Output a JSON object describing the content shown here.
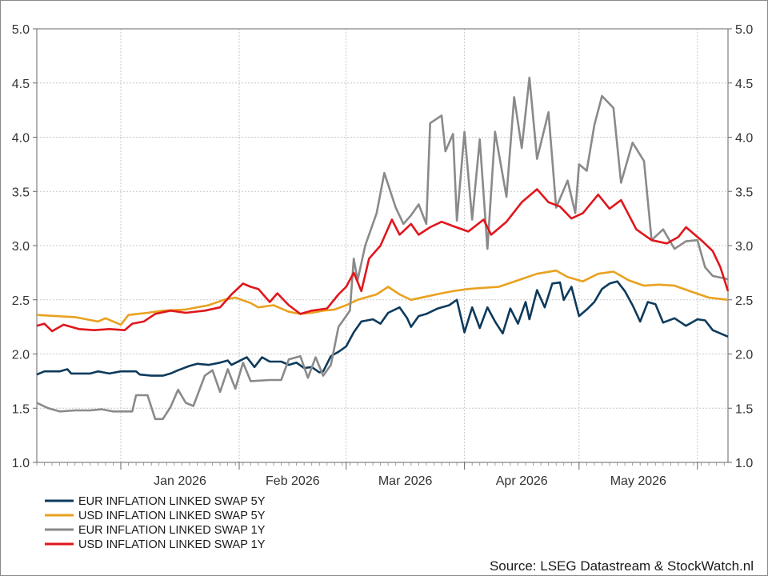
{
  "chart_data": {
    "type": "line",
    "title": "",
    "xlabel": "",
    "ylabel": "",
    "x_range": [
      "2025-12-10",
      "2026-06-09"
    ],
    "ylim": [
      1.0,
      5.0
    ],
    "y_ticks": [
      "1.0",
      "1.5",
      "2.0",
      "2.5",
      "3.0",
      "3.5",
      "4.0",
      "4.5",
      "5.0"
    ],
    "x_ticks": [
      {
        "label": "Jan 2026",
        "date": "2026-01-01"
      },
      {
        "label": "Feb 2026",
        "date": "2026-02-01"
      },
      {
        "label": "Mar 2026",
        "date": "2026-03-01"
      },
      {
        "label": "Apr 2026",
        "date": "2026-04-01"
      },
      {
        "label": "May 2026",
        "date": "2026-05-01"
      }
    ],
    "grid": true,
    "legend_position": "bottom-left",
    "source": "Source: LSEG Datastream & StockWatch.nl",
    "series": [
      {
        "name": "EUR INFLATION LINKED SWAP 5Y",
        "color": "#0d3a5c",
        "points": [
          [
            "2025-12-10",
            1.81
          ],
          [
            "2025-12-12",
            1.84
          ],
          [
            "2025-12-16",
            1.84
          ],
          [
            "2025-12-18",
            1.86
          ],
          [
            "2025-12-19",
            1.82
          ],
          [
            "2025-12-24",
            1.82
          ],
          [
            "2025-12-26",
            1.84
          ],
          [
            "2025-12-29",
            1.82
          ],
          [
            "2026-01-01",
            1.84
          ],
          [
            "2026-01-05",
            1.84
          ],
          [
            "2026-01-06",
            1.81
          ],
          [
            "2026-01-09",
            1.8
          ],
          [
            "2026-01-12",
            1.8
          ],
          [
            "2026-01-14",
            1.82
          ],
          [
            "2026-01-16",
            1.85
          ],
          [
            "2026-01-19",
            1.89
          ],
          [
            "2026-01-21",
            1.91
          ],
          [
            "2026-01-24",
            1.9
          ],
          [
            "2026-01-27",
            1.92
          ],
          [
            "2026-01-29",
            1.94
          ],
          [
            "2026-01-30",
            1.9
          ],
          [
            "2026-02-03",
            1.97
          ],
          [
            "2026-02-05",
            1.88
          ],
          [
            "2026-02-07",
            1.97
          ],
          [
            "2026-02-09",
            1.93
          ],
          [
            "2026-02-12",
            1.93
          ],
          [
            "2026-02-14",
            1.9
          ],
          [
            "2026-02-16",
            1.92
          ],
          [
            "2026-02-18",
            1.87
          ],
          [
            "2026-02-20",
            1.88
          ],
          [
            "2026-02-22",
            1.83
          ],
          [
            "2026-02-23",
            1.84
          ],
          [
            "2026-02-25",
            1.98
          ],
          [
            "2026-02-27",
            2.02
          ],
          [
            "2026-03-01",
            2.07
          ],
          [
            "2026-03-03",
            2.2
          ],
          [
            "2026-03-05",
            2.3
          ],
          [
            "2026-03-08",
            2.32
          ],
          [
            "2026-03-10",
            2.28
          ],
          [
            "2026-03-12",
            2.38
          ],
          [
            "2026-03-15",
            2.43
          ],
          [
            "2026-03-17",
            2.33
          ],
          [
            "2026-03-18",
            2.25
          ],
          [
            "2026-03-20",
            2.35
          ],
          [
            "2026-03-22",
            2.37
          ],
          [
            "2026-03-25",
            2.42
          ],
          [
            "2026-03-28",
            2.45
          ],
          [
            "2026-03-30",
            2.5
          ],
          [
            "2026-04-01",
            2.2
          ],
          [
            "2026-04-03",
            2.43
          ],
          [
            "2026-04-05",
            2.24
          ],
          [
            "2026-04-07",
            2.43
          ],
          [
            "2026-04-09",
            2.3
          ],
          [
            "2026-04-11",
            2.19
          ],
          [
            "2026-04-13",
            2.42
          ],
          [
            "2026-04-15",
            2.28
          ],
          [
            "2026-04-17",
            2.48
          ],
          [
            "2026-04-18",
            2.32
          ],
          [
            "2026-04-20",
            2.59
          ],
          [
            "2026-04-22",
            2.43
          ],
          [
            "2026-04-24",
            2.65
          ],
          [
            "2026-04-26",
            2.66
          ],
          [
            "2026-04-27",
            2.5
          ],
          [
            "2026-04-29",
            2.62
          ],
          [
            "2026-05-01",
            2.35
          ],
          [
            "2026-05-03",
            2.41
          ],
          [
            "2026-05-05",
            2.48
          ],
          [
            "2026-05-07",
            2.6
          ],
          [
            "2026-05-09",
            2.65
          ],
          [
            "2026-05-11",
            2.67
          ],
          [
            "2026-05-13",
            2.58
          ],
          [
            "2026-05-15",
            2.45
          ],
          [
            "2026-05-17",
            2.3
          ],
          [
            "2026-05-19",
            2.48
          ],
          [
            "2026-05-21",
            2.46
          ],
          [
            "2026-05-23",
            2.29
          ],
          [
            "2026-05-26",
            2.33
          ],
          [
            "2026-05-29",
            2.26
          ],
          [
            "2026-06-01",
            2.32
          ],
          [
            "2026-06-03",
            2.31
          ],
          [
            "2026-06-05",
            2.22
          ],
          [
            "2026-06-09",
            2.16
          ]
        ]
      },
      {
        "name": "USD INFLATION LINKED SWAP 5Y",
        "color": "#e9a11f",
        "points": [
          [
            "2025-12-10",
            2.36
          ],
          [
            "2025-12-15",
            2.35
          ],
          [
            "2025-12-20",
            2.34
          ],
          [
            "2025-12-26",
            2.3
          ],
          [
            "2025-12-28",
            2.33
          ],
          [
            "2026-01-01",
            2.27
          ],
          [
            "2026-01-03",
            2.36
          ],
          [
            "2026-01-08",
            2.38
          ],
          [
            "2026-01-12",
            2.4
          ],
          [
            "2026-01-18",
            2.41
          ],
          [
            "2026-01-24",
            2.45
          ],
          [
            "2026-01-28",
            2.5
          ],
          [
            "2026-01-31",
            2.52
          ],
          [
            "2026-02-04",
            2.47
          ],
          [
            "2026-02-06",
            2.43
          ],
          [
            "2026-02-10",
            2.45
          ],
          [
            "2026-02-14",
            2.39
          ],
          [
            "2026-02-17",
            2.37
          ],
          [
            "2026-02-20",
            2.38
          ],
          [
            "2026-02-23",
            2.4
          ],
          [
            "2026-02-26",
            2.41
          ],
          [
            "2026-03-01",
            2.45
          ],
          [
            "2026-03-04",
            2.5
          ],
          [
            "2026-03-09",
            2.55
          ],
          [
            "2026-03-12",
            2.62
          ],
          [
            "2026-03-15",
            2.55
          ],
          [
            "2026-03-18",
            2.5
          ],
          [
            "2026-03-22",
            2.53
          ],
          [
            "2026-03-26",
            2.56
          ],
          [
            "2026-03-29",
            2.58
          ],
          [
            "2026-04-02",
            2.6
          ],
          [
            "2026-04-06",
            2.61
          ],
          [
            "2026-04-10",
            2.62
          ],
          [
            "2026-04-15",
            2.68
          ],
          [
            "2026-04-20",
            2.74
          ],
          [
            "2026-04-25",
            2.77
          ],
          [
            "2026-04-28",
            2.71
          ],
          [
            "2026-05-02",
            2.67
          ],
          [
            "2026-05-06",
            2.74
          ],
          [
            "2026-05-10",
            2.76
          ],
          [
            "2026-05-14",
            2.68
          ],
          [
            "2026-05-18",
            2.63
          ],
          [
            "2026-05-22",
            2.64
          ],
          [
            "2026-05-26",
            2.63
          ],
          [
            "2026-05-30",
            2.58
          ],
          [
            "2026-06-04",
            2.52
          ],
          [
            "2026-06-09",
            2.5
          ]
        ]
      },
      {
        "name": "EUR INFLATION LINKED SWAP 1Y",
        "color": "#8a8a8a",
        "points": [
          [
            "2025-12-10",
            1.55
          ],
          [
            "2025-12-13",
            1.5
          ],
          [
            "2025-12-16",
            1.47
          ],
          [
            "2025-12-20",
            1.48
          ],
          [
            "2025-12-24",
            1.48
          ],
          [
            "2025-12-27",
            1.49
          ],
          [
            "2025-12-30",
            1.47
          ],
          [
            "2026-01-04",
            1.47
          ],
          [
            "2026-01-05",
            1.62
          ],
          [
            "2026-01-08",
            1.62
          ],
          [
            "2026-01-10",
            1.4
          ],
          [
            "2026-01-12",
            1.4
          ],
          [
            "2026-01-14",
            1.51
          ],
          [
            "2026-01-16",
            1.67
          ],
          [
            "2026-01-18",
            1.55
          ],
          [
            "2026-01-20",
            1.52
          ],
          [
            "2026-01-23",
            1.8
          ],
          [
            "2026-01-25",
            1.85
          ],
          [
            "2026-01-27",
            1.65
          ],
          [
            "2026-01-29",
            1.86
          ],
          [
            "2026-01-31",
            1.68
          ],
          [
            "2026-02-02",
            1.92
          ],
          [
            "2026-02-04",
            1.75
          ],
          [
            "2026-02-09",
            1.76
          ],
          [
            "2026-02-12",
            1.76
          ],
          [
            "2026-02-14",
            1.95
          ],
          [
            "2026-02-17",
            1.98
          ],
          [
            "2026-02-19",
            1.78
          ],
          [
            "2026-02-21",
            1.97
          ],
          [
            "2026-02-23",
            1.8
          ],
          [
            "2026-02-25",
            1.9
          ],
          [
            "2026-02-27",
            2.25
          ],
          [
            "2026-02-28",
            2.3
          ],
          [
            "2026-03-02",
            2.4
          ],
          [
            "2026-03-03",
            2.88
          ],
          [
            "2026-03-04",
            2.68
          ],
          [
            "2026-03-06",
            3.0
          ],
          [
            "2026-03-09",
            3.3
          ],
          [
            "2026-03-11",
            3.67
          ],
          [
            "2026-03-14",
            3.35
          ],
          [
            "2026-03-16",
            3.2
          ],
          [
            "2026-03-18",
            3.28
          ],
          [
            "2026-03-20",
            3.38
          ],
          [
            "2026-03-22",
            3.2
          ],
          [
            "2026-03-23",
            4.13
          ],
          [
            "2026-03-26",
            4.2
          ],
          [
            "2026-03-27",
            3.87
          ],
          [
            "2026-03-29",
            4.03
          ],
          [
            "2026-03-30",
            3.23
          ],
          [
            "2026-04-01",
            4.05
          ],
          [
            "2026-04-03",
            3.24
          ],
          [
            "2026-04-05",
            3.98
          ],
          [
            "2026-04-07",
            2.97
          ],
          [
            "2026-04-09",
            4.05
          ],
          [
            "2026-04-12",
            3.45
          ],
          [
            "2026-04-14",
            4.37
          ],
          [
            "2026-04-16",
            3.9
          ],
          [
            "2026-04-18",
            4.55
          ],
          [
            "2026-04-20",
            3.8
          ],
          [
            "2026-04-23",
            4.23
          ],
          [
            "2026-04-25",
            3.35
          ],
          [
            "2026-04-28",
            3.6
          ],
          [
            "2026-04-30",
            3.3
          ],
          [
            "2026-05-01",
            3.75
          ],
          [
            "2026-05-03",
            3.69
          ],
          [
            "2026-05-05",
            4.11
          ],
          [
            "2026-05-07",
            4.38
          ],
          [
            "2026-05-10",
            4.27
          ],
          [
            "2026-05-12",
            3.58
          ],
          [
            "2026-05-15",
            3.95
          ],
          [
            "2026-05-18",
            3.78
          ],
          [
            "2026-05-20",
            3.05
          ],
          [
            "2026-05-23",
            3.15
          ],
          [
            "2026-05-26",
            2.97
          ],
          [
            "2026-05-29",
            3.04
          ],
          [
            "2026-06-01",
            3.05
          ],
          [
            "2026-06-03",
            2.8
          ],
          [
            "2026-06-05",
            2.72
          ],
          [
            "2026-06-09",
            2.69
          ]
        ]
      },
      {
        "name": "USD INFLATION LINKED SWAP 1Y",
        "color": "#e0161c",
        "points": [
          [
            "2025-12-10",
            2.26
          ],
          [
            "2025-12-12",
            2.28
          ],
          [
            "2025-12-14",
            2.21
          ],
          [
            "2025-12-17",
            2.27
          ],
          [
            "2025-12-21",
            2.23
          ],
          [
            "2025-12-25",
            2.22
          ],
          [
            "2025-12-29",
            2.23
          ],
          [
            "2026-01-02",
            2.22
          ],
          [
            "2026-01-04",
            2.28
          ],
          [
            "2026-01-07",
            2.3
          ],
          [
            "2026-01-10",
            2.37
          ],
          [
            "2026-01-14",
            2.4
          ],
          [
            "2026-01-18",
            2.38
          ],
          [
            "2026-01-23",
            2.4
          ],
          [
            "2026-01-27",
            2.43
          ],
          [
            "2026-01-30",
            2.55
          ],
          [
            "2026-02-02",
            2.65
          ],
          [
            "2026-02-04",
            2.62
          ],
          [
            "2026-02-06",
            2.6
          ],
          [
            "2026-02-09",
            2.48
          ],
          [
            "2026-02-11",
            2.56
          ],
          [
            "2026-02-14",
            2.45
          ],
          [
            "2026-02-17",
            2.37
          ],
          [
            "2026-02-20",
            2.4
          ],
          [
            "2026-02-24",
            2.42
          ],
          [
            "2026-02-27",
            2.55
          ],
          [
            "2026-03-01",
            2.62
          ],
          [
            "2026-03-03",
            2.75
          ],
          [
            "2026-03-05",
            2.58
          ],
          [
            "2026-03-07",
            2.88
          ],
          [
            "2026-03-10",
            3.0
          ],
          [
            "2026-03-13",
            3.24
          ],
          [
            "2026-03-15",
            3.1
          ],
          [
            "2026-03-18",
            3.2
          ],
          [
            "2026-03-20",
            3.1
          ],
          [
            "2026-03-23",
            3.17
          ],
          [
            "2026-03-26",
            3.22
          ],
          [
            "2026-03-29",
            3.18
          ],
          [
            "2026-04-02",
            3.13
          ],
          [
            "2026-04-06",
            3.24
          ],
          [
            "2026-04-08",
            3.1
          ],
          [
            "2026-04-12",
            3.22
          ],
          [
            "2026-04-16",
            3.4
          ],
          [
            "2026-04-20",
            3.52
          ],
          [
            "2026-04-23",
            3.4
          ],
          [
            "2026-04-26",
            3.36
          ],
          [
            "2026-04-29",
            3.25
          ],
          [
            "2026-05-02",
            3.3
          ],
          [
            "2026-05-06",
            3.47
          ],
          [
            "2026-05-09",
            3.34
          ],
          [
            "2026-05-12",
            3.42
          ],
          [
            "2026-05-16",
            3.15
          ],
          [
            "2026-05-20",
            3.05
          ],
          [
            "2026-05-24",
            3.02
          ],
          [
            "2026-05-27",
            3.08
          ],
          [
            "2026-05-29",
            3.17
          ],
          [
            "2026-06-02",
            3.05
          ],
          [
            "2026-06-05",
            2.95
          ],
          [
            "2026-06-07",
            2.8
          ],
          [
            "2026-06-09",
            2.58
          ]
        ]
      }
    ]
  }
}
